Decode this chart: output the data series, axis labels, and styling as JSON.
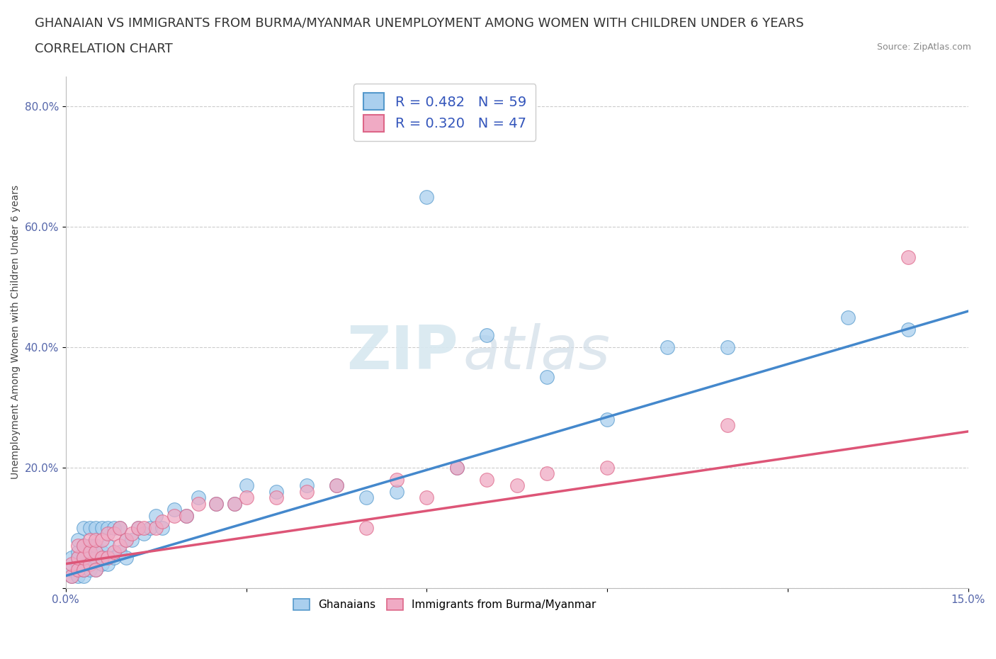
{
  "title_line1": "GHANAIAN VS IMMIGRANTS FROM BURMA/MYANMAR UNEMPLOYMENT AMONG WOMEN WITH CHILDREN UNDER 6 YEARS",
  "title_line2": "CORRELATION CHART",
  "source_text": "Source: ZipAtlas.com",
  "ylabel": "Unemployment Among Women with Children Under 6 years",
  "x_min": 0.0,
  "x_max": 0.15,
  "y_min": 0.0,
  "y_max": 0.85,
  "x_ticks": [
    0.0,
    0.03,
    0.06,
    0.09,
    0.12,
    0.15
  ],
  "x_tick_labels": [
    "0.0%",
    "",
    "",
    "",
    "",
    "15.0%"
  ],
  "y_ticks": [
    0.0,
    0.2,
    0.4,
    0.6,
    0.8
  ],
  "y_tick_labels": [
    "",
    "20.0%",
    "40.0%",
    "60.0%",
    "80.0%"
  ],
  "ghanaian_color": "#aacfee",
  "burma_color": "#f0aac4",
  "ghanaian_edge_color": "#5599cc",
  "burma_edge_color": "#dd6688",
  "ghanaian_line_color": "#4488cc",
  "burma_line_color": "#dd5577",
  "legend_R_ghanaian": "R = 0.482",
  "legend_N_ghanaian": "N = 59",
  "legend_R_burma": "R = 0.320",
  "legend_N_burma": "N = 47",
  "watermark_zip": "ZIP",
  "watermark_atlas": "atlas",
  "ghanaian_scatter_x": [
    0.001,
    0.001,
    0.001,
    0.002,
    0.002,
    0.002,
    0.002,
    0.002,
    0.003,
    0.003,
    0.003,
    0.003,
    0.003,
    0.004,
    0.004,
    0.004,
    0.004,
    0.005,
    0.005,
    0.005,
    0.005,
    0.006,
    0.006,
    0.006,
    0.007,
    0.007,
    0.007,
    0.008,
    0.008,
    0.009,
    0.009,
    0.01,
    0.01,
    0.011,
    0.012,
    0.013,
    0.014,
    0.015,
    0.016,
    0.018,
    0.02,
    0.022,
    0.025,
    0.028,
    0.03,
    0.035,
    0.04,
    0.045,
    0.05,
    0.055,
    0.06,
    0.065,
    0.07,
    0.08,
    0.09,
    0.1,
    0.11,
    0.13,
    0.14
  ],
  "ghanaian_scatter_y": [
    0.02,
    0.03,
    0.05,
    0.02,
    0.04,
    0.05,
    0.06,
    0.08,
    0.02,
    0.03,
    0.05,
    0.07,
    0.1,
    0.03,
    0.05,
    0.07,
    0.1,
    0.03,
    0.05,
    0.07,
    0.1,
    0.04,
    0.06,
    0.1,
    0.04,
    0.07,
    0.1,
    0.05,
    0.1,
    0.06,
    0.1,
    0.05,
    0.08,
    0.08,
    0.1,
    0.09,
    0.1,
    0.12,
    0.1,
    0.13,
    0.12,
    0.15,
    0.14,
    0.14,
    0.17,
    0.16,
    0.17,
    0.17,
    0.15,
    0.16,
    0.65,
    0.2,
    0.42,
    0.35,
    0.28,
    0.4,
    0.4,
    0.45,
    0.43
  ],
  "burma_scatter_x": [
    0.001,
    0.001,
    0.002,
    0.002,
    0.002,
    0.003,
    0.003,
    0.003,
    0.004,
    0.004,
    0.004,
    0.005,
    0.005,
    0.005,
    0.006,
    0.006,
    0.007,
    0.007,
    0.008,
    0.008,
    0.009,
    0.009,
    0.01,
    0.011,
    0.012,
    0.013,
    0.015,
    0.016,
    0.018,
    0.02,
    0.022,
    0.025,
    0.028,
    0.03,
    0.035,
    0.04,
    0.045,
    0.05,
    0.055,
    0.06,
    0.065,
    0.07,
    0.075,
    0.08,
    0.09,
    0.11,
    0.14
  ],
  "burma_scatter_y": [
    0.02,
    0.04,
    0.03,
    0.05,
    0.07,
    0.03,
    0.05,
    0.07,
    0.04,
    0.06,
    0.08,
    0.03,
    0.06,
    0.08,
    0.05,
    0.08,
    0.05,
    0.09,
    0.06,
    0.09,
    0.07,
    0.1,
    0.08,
    0.09,
    0.1,
    0.1,
    0.1,
    0.11,
    0.12,
    0.12,
    0.14,
    0.14,
    0.14,
    0.15,
    0.15,
    0.16,
    0.17,
    0.1,
    0.18,
    0.15,
    0.2,
    0.18,
    0.17,
    0.19,
    0.2,
    0.27,
    0.55
  ],
  "ghanaian_trend_x": [
    0.0,
    0.15
  ],
  "ghanaian_trend_y": [
    0.02,
    0.46
  ],
  "burma_trend_x": [
    0.0,
    0.15
  ],
  "burma_trend_y": [
    0.04,
    0.26
  ],
  "background_color": "#ffffff",
  "grid_color": "#cccccc",
  "title_fontsize": 13,
  "axis_label_fontsize": 10,
  "tick_fontsize": 11,
  "legend_fontsize": 14
}
